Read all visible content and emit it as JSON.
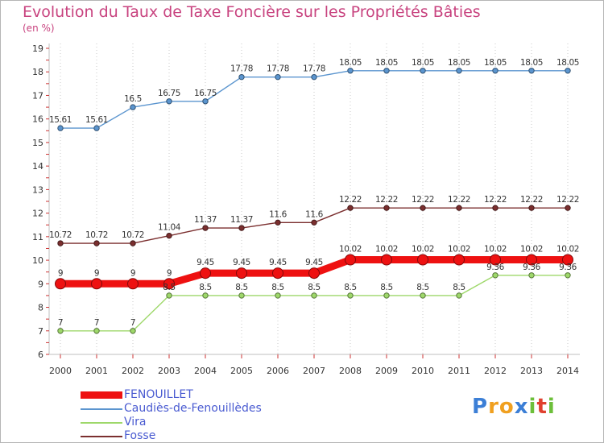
{
  "title": "Evolution du Taux de Taxe Foncière sur les Propriétés Bâties",
  "unit": "(en %)",
  "logo": {
    "letters": [
      "P",
      "r",
      "o",
      "x",
      "i",
      "t",
      "i"
    ],
    "colors": [
      "#3c7fd6",
      "#f0a020",
      "#f0a020",
      "#3c7fd6",
      "#6cbf3a",
      "#e0402f",
      "#6cbf3a"
    ]
  },
  "chart_data": {
    "type": "line",
    "title": "Evolution du Taux de Taxe Foncière sur les Propriétés Bâties",
    "ylabel": "(en %)",
    "x": [
      "2000",
      "2001",
      "2002",
      "2003",
      "2004",
      "2005",
      "2006",
      "2007",
      "2008",
      "2009",
      "2010",
      "2011",
      "2012",
      "2013",
      "2014"
    ],
    "yticks": [
      "6",
      "7",
      "8",
      "9",
      "10",
      "11",
      "12",
      "13",
      "14",
      "15",
      "16",
      "17",
      "18",
      "19"
    ],
    "ylim": [
      6,
      19
    ],
    "grid": "vertical",
    "legend_position": "bottom-left",
    "series": [
      {
        "name": "Caudiès-de-Fenouillèdes",
        "color": "#5b95cf",
        "values": [
          15.61,
          15.61,
          16.5,
          16.75,
          16.75,
          17.78,
          17.78,
          17.78,
          18.05,
          18.05,
          18.05,
          18.05,
          18.05,
          18.05,
          18.05
        ],
        "labels": [
          "15.61",
          "15.61",
          "16.5",
          "16.75",
          "16.75",
          "17.78",
          "17.78",
          "17.78",
          "18.05",
          "18.05",
          "18.05",
          "18.05",
          "18.05",
          "18.05",
          "18.05"
        ]
      },
      {
        "name": "Fosse",
        "color": "#7b2f2f",
        "values": [
          10.72,
          10.72,
          10.72,
          11.04,
          11.37,
          11.37,
          11.6,
          11.6,
          12.22,
          12.22,
          12.22,
          12.22,
          12.22,
          12.22,
          12.22
        ],
        "labels": [
          "10.72",
          "10.72",
          "10.72",
          "11.04",
          "11.37",
          "11.37",
          "11.6",
          "11.6",
          "12.22",
          "12.22",
          "12.22",
          "12.22",
          "12.22",
          "12.22",
          "12.22"
        ]
      },
      {
        "name": "Vira",
        "color": "#9ed86a",
        "values": [
          7,
          7,
          7,
          8.5,
          8.5,
          8.5,
          8.5,
          8.5,
          8.5,
          8.5,
          8.5,
          8.5,
          9.36,
          9.36,
          9.36
        ],
        "labels": [
          "7",
          "7",
          "7",
          "8.5",
          "8.5",
          "8.5",
          "8.5",
          "8.5",
          "8.5",
          "8.5",
          "8.5",
          "8.5",
          "9.36",
          "9.36",
          "9.36"
        ]
      },
      {
        "name": "FENOUILLET",
        "color": "#ee1111",
        "values": [
          9,
          9,
          9,
          9,
          9.45,
          9.45,
          9.45,
          9.45,
          10.02,
          10.02,
          10.02,
          10.02,
          10.02,
          10.02,
          10.02
        ],
        "labels": [
          "9",
          "9",
          "9",
          "9",
          "9.45",
          "9.45",
          "9.45",
          "9.45",
          "10.02",
          "10.02",
          "10.02",
          "10.02",
          "10.02",
          "10.02",
          "10.02"
        ]
      }
    ],
    "legend_order": [
      "FENOUILLET",
      "Caudiès-de-Fenouillèdes",
      "Vira",
      "Fosse"
    ]
  }
}
